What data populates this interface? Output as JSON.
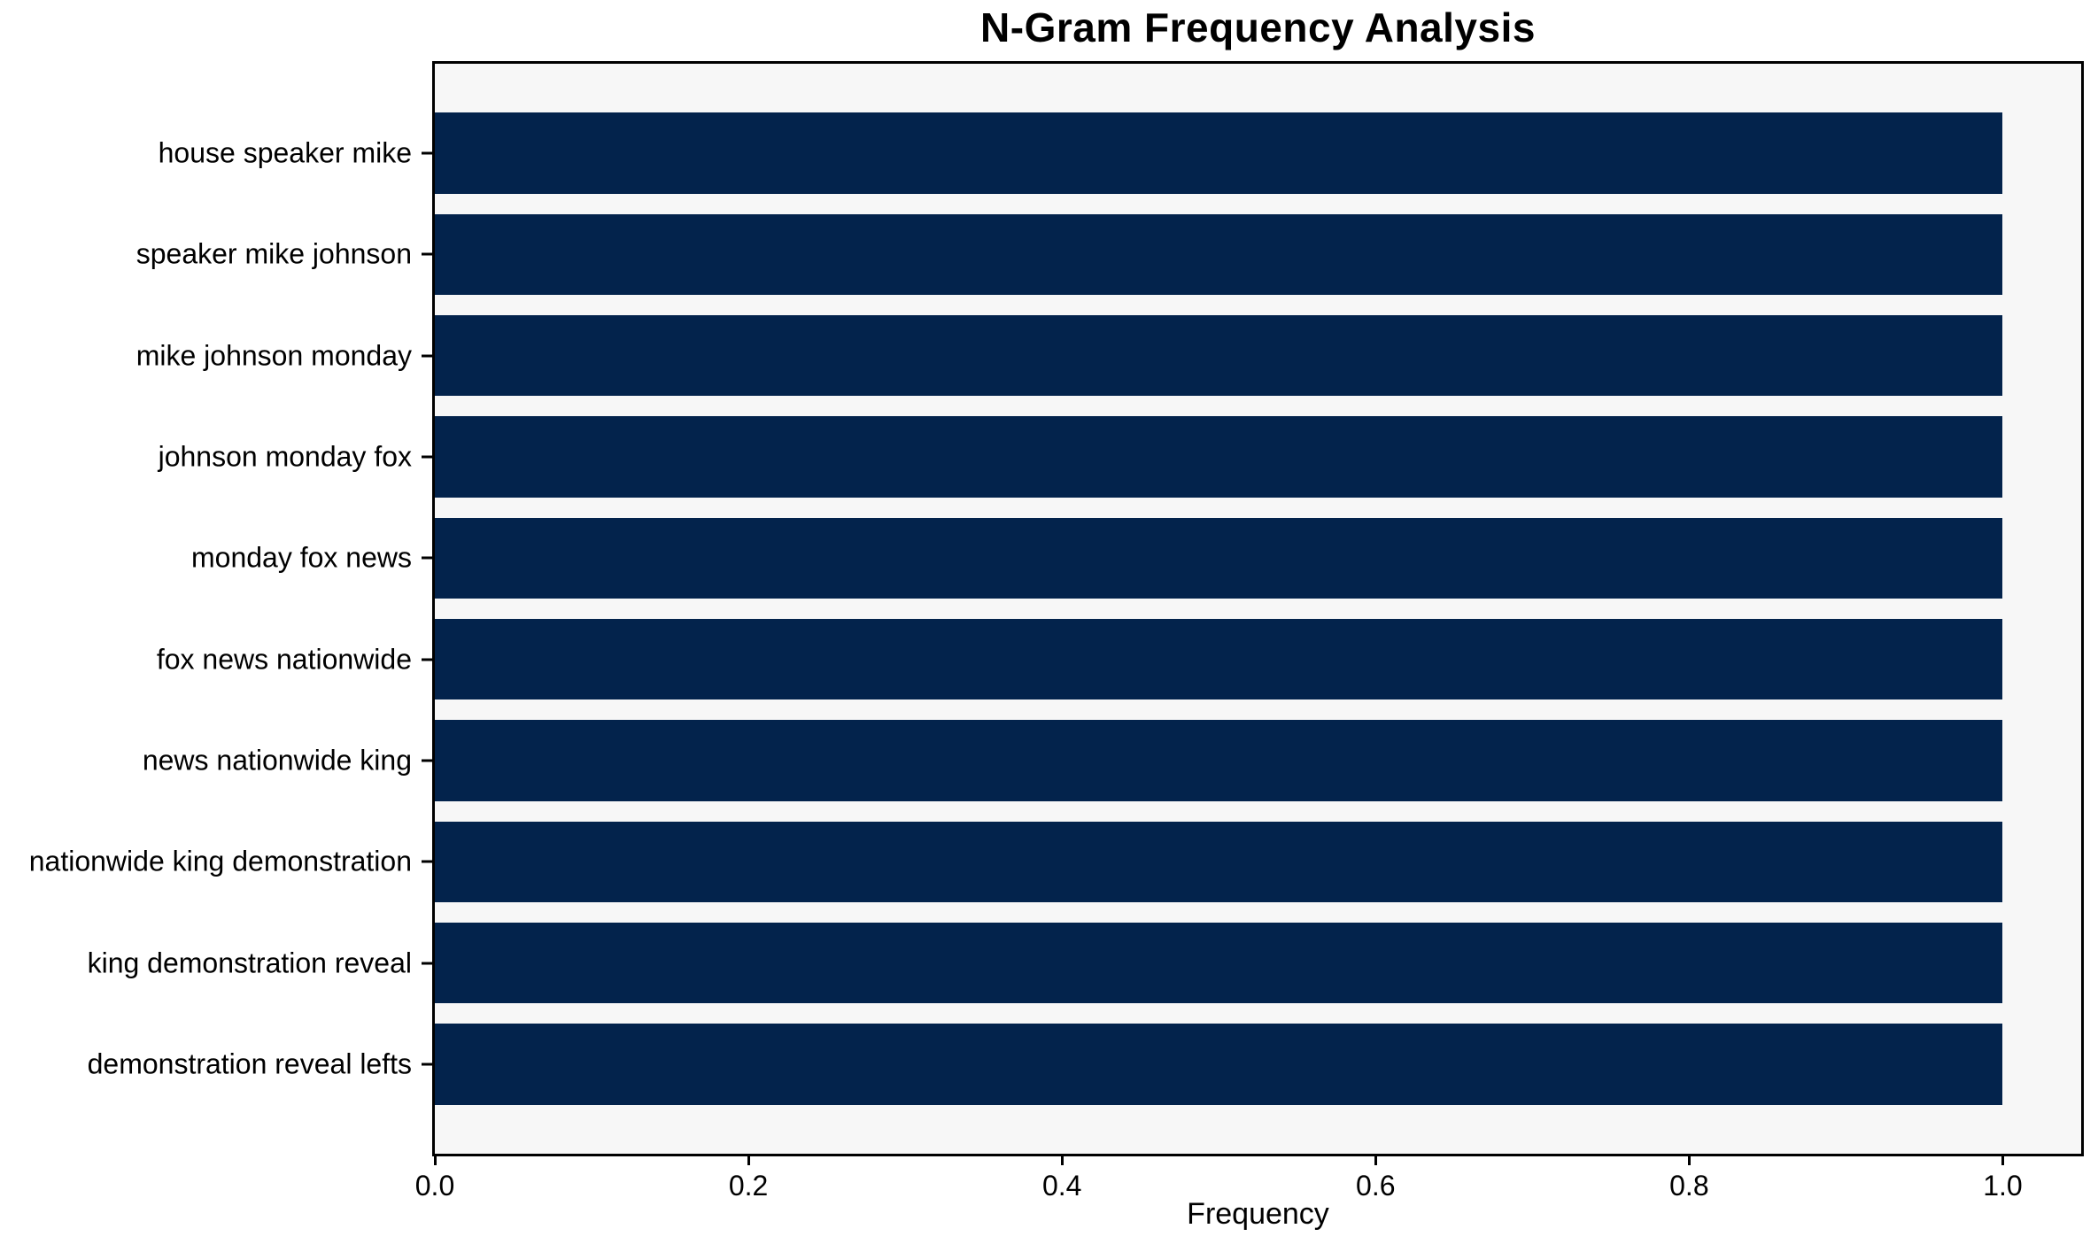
{
  "chart_data": {
    "type": "bar",
    "orientation": "horizontal",
    "title": "N-Gram Frequency Analysis",
    "xlabel": "Frequency",
    "ylabel": "",
    "categories": [
      "house speaker mike",
      "speaker mike johnson",
      "mike johnson monday",
      "johnson monday fox",
      "monday fox news",
      "fox news nationwide",
      "news nationwide king",
      "nationwide king demonstration",
      "king demonstration reveal",
      "demonstration reveal lefts"
    ],
    "values": [
      1.0,
      1.0,
      1.0,
      1.0,
      1.0,
      1.0,
      1.0,
      1.0,
      1.0,
      1.0
    ],
    "xlim": [
      0,
      1.05
    ],
    "xticks": [
      0.0,
      0.2,
      0.4,
      0.6,
      0.8,
      1.0
    ],
    "xtick_labels": [
      "0.0",
      "0.2",
      "0.4",
      "0.6",
      "0.8",
      "1.0"
    ],
    "grid": false,
    "legend": null,
    "colors": {
      "bar": "#03234c",
      "plot_background": "#f7f7f7",
      "figure_background": "#ffffff",
      "spine": "#000000",
      "text": "#000000"
    }
  }
}
